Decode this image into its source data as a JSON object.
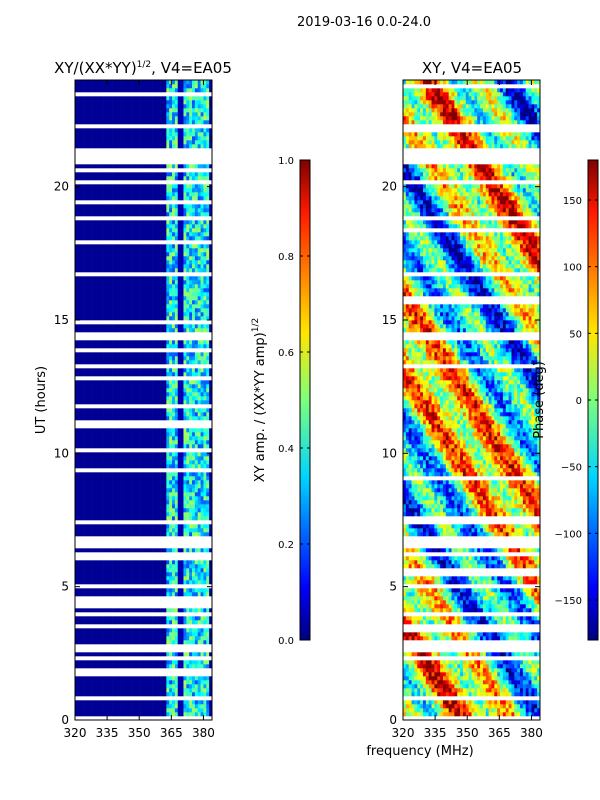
{
  "chart_data": {
    "type": "heatmap",
    "suptitle": "2019-03-16 0.0-24.0",
    "xlabel": "frequency (MHz)",
    "panels": [
      {
        "title": "XY/(XX*YY)",
        "title_sup": "1/2",
        "title_suffix": ", V4=EA05",
        "ylabel": "UT (hours)",
        "xlim": [
          320,
          384
        ],
        "ylim": [
          0,
          24
        ],
        "xticks": [
          320,
          335,
          350,
          365,
          380
        ],
        "yticks": [
          0,
          5,
          10,
          15,
          20
        ],
        "colormap": "jet",
        "colorbar": {
          "label": "XY amp. / (XX*YY amp)",
          "label_sup": "1/2",
          "range": [
            0.0,
            1.0
          ],
          "ticks": [
            "0.0",
            "0.2",
            "0.4",
            "0.6",
            "0.8",
            "1.0"
          ],
          "tick_values": [
            0.0,
            0.2,
            0.4,
            0.6,
            0.8,
            1.0
          ]
        }
      },
      {
        "title": "XY, V4=EA05",
        "xlim": [
          320,
          384
        ],
        "ylim": [
          0,
          24
        ],
        "xticks": [
          320,
          335,
          350,
          365,
          380
        ],
        "yticks": [
          0,
          5,
          10,
          15,
          20
        ],
        "colormap": "jet",
        "colorbar": {
          "label": "Phase (deg)",
          "range": [
            -180,
            180
          ],
          "ticks": [
            "−150",
            "−100",
            "−50",
            "0",
            "50",
            "100",
            "150"
          ],
          "tick_values": [
            -150,
            -100,
            -50,
            0,
            50,
            100,
            150
          ]
        }
      }
    ],
    "flagged_ut_hours": [
      [
        0.0,
        0.1
      ],
      [
        0.8,
        0.9
      ],
      [
        1.05,
        1.1
      ],
      [
        2.3,
        2.45
      ],
      [
        2.6,
        2.8
      ],
      [
        3.45,
        3.6
      ],
      [
        3.9,
        4.0
      ],
      [
        5.0,
        5.05
      ],
      [
        6.2,
        6.3
      ],
      [
        6.45,
        6.9
      ],
      [
        7.4,
        7.5
      ],
      [
        7.9,
        8.0
      ],
      [
        11.35,
        11.45
      ],
      [
        13.2,
        13.4
      ],
      [
        14.3,
        14.6
      ],
      [
        16.6,
        16.8
      ],
      [
        18.8,
        18.9
      ],
      [
        20.1,
        20.2
      ],
      [
        20.9,
        21.4
      ],
      [
        22.2,
        22.3
      ]
    ]
  }
}
